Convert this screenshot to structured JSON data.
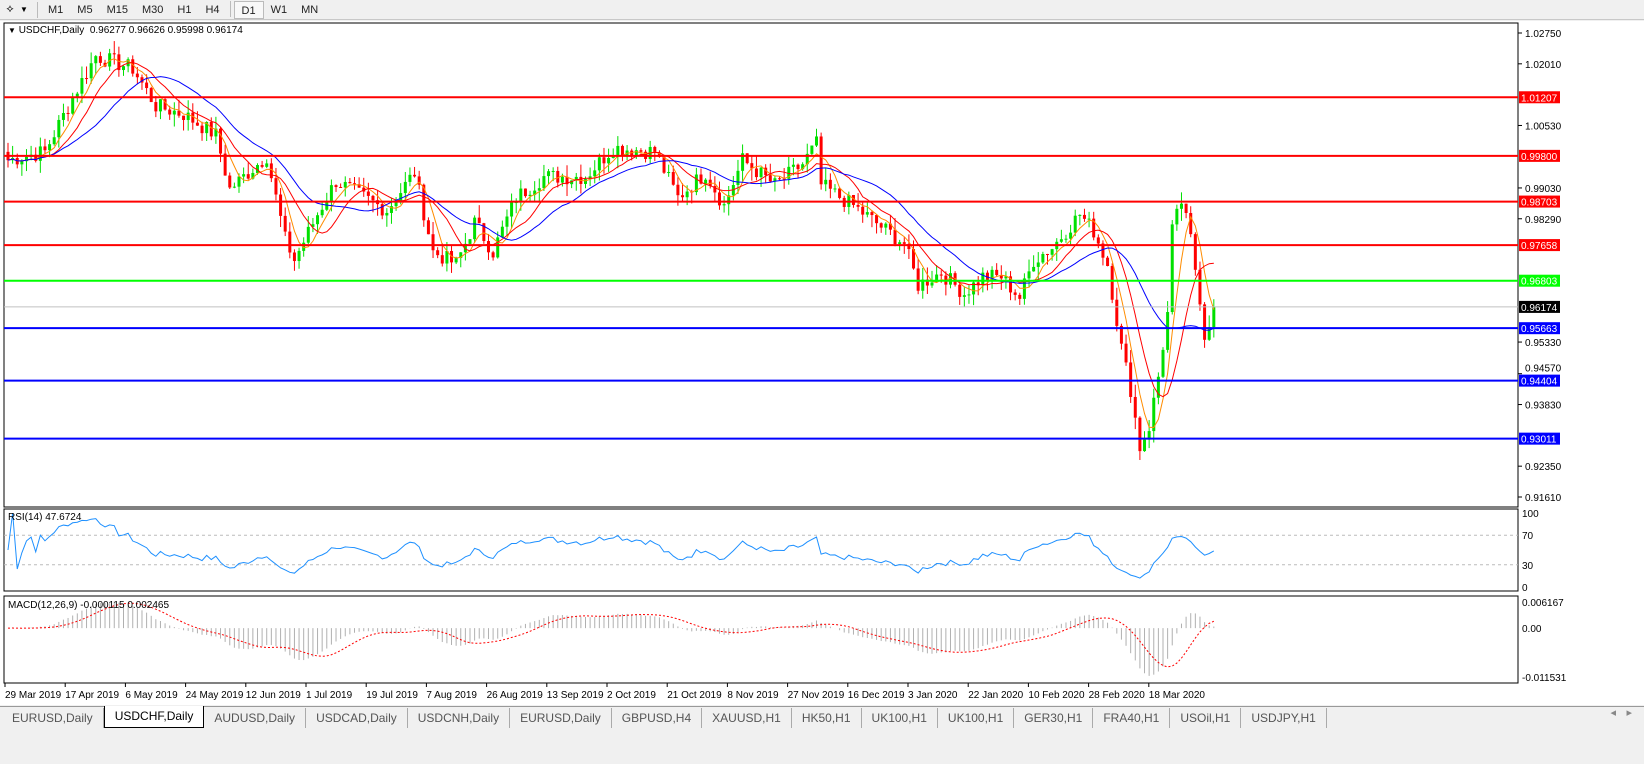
{
  "toolbar": {
    "timeframes": [
      "M1",
      "M5",
      "M15",
      "M30",
      "H1",
      "H4",
      "D1",
      "W1",
      "MN"
    ],
    "active": "D1"
  },
  "chart": {
    "symbol_label": "USDCHF,Daily",
    "ohlc": "0.96277 0.96626 0.95998 0.96174",
    "current_price": "0.96174",
    "price_ticks": [
      "1.02750",
      "1.02010",
      "1.00530",
      "0.99030",
      "0.98290",
      "0.95330",
      "0.94570",
      "0.93830",
      "0.92350",
      "0.91610"
    ],
    "price_range": [
      0.9161,
      1.0275
    ],
    "hlines": [
      {
        "price": "1.01207",
        "color": "#ff0000"
      },
      {
        "price": "0.99800",
        "color": "#ff0000"
      },
      {
        "price": "0.98703",
        "color": "#ff0000"
      },
      {
        "price": "0.97658",
        "color": "#ff0000"
      },
      {
        "price": "0.96803",
        "color": "#00ff00"
      },
      {
        "price": "0.95663",
        "color": "#0000ff"
      },
      {
        "price": "0.94404",
        "color": "#0000ff"
      },
      {
        "price": "0.93011",
        "color": "#0000ff"
      }
    ],
    "colors": {
      "bull": "#00e000",
      "bear": "#ff0000",
      "ma_fast": "#ff8c00",
      "ma_mid": "#ff0000",
      "ma_slow": "#0000ff",
      "rsi": "#1e90ff",
      "macd_signal": "#ff0000",
      "macd_hist": "#b0b0b0"
    },
    "price_path": [
      [
        0,
        0.997
      ],
      [
        8,
        0.999
      ],
      [
        14,
        1.012
      ],
      [
        19,
        1.022
      ],
      [
        27,
        1.019
      ],
      [
        32,
        1.01
      ],
      [
        38,
        1.008
      ],
      [
        45,
        1.003
      ],
      [
        48,
        0.99
      ],
      [
        56,
        0.998
      ],
      [
        60,
        0.978
      ],
      [
        62,
        0.973
      ],
      [
        67,
        0.984
      ],
      [
        71,
        0.992
      ],
      [
        77,
        0.988
      ],
      [
        82,
        0.985
      ],
      [
        88,
        0.994
      ],
      [
        92,
        0.975
      ],
      [
        97,
        0.972
      ],
      [
        101,
        0.982
      ],
      [
        105,
        0.975
      ],
      [
        110,
        0.988
      ],
      [
        116,
        0.993
      ],
      [
        125,
        0.993
      ],
      [
        131,
        1.0
      ],
      [
        140,
        0.999
      ],
      [
        145,
        0.988
      ],
      [
        151,
        0.994
      ],
      [
        155,
        0.986
      ],
      [
        159,
        0.997
      ],
      [
        166,
        0.991
      ],
      [
        172,
        0.996
      ],
      [
        175,
        1.001
      ],
      [
        176,
        0.991
      ],
      [
        183,
        0.986
      ],
      [
        189,
        0.981
      ],
      [
        194,
        0.977
      ],
      [
        197,
        0.967
      ],
      [
        202,
        0.97
      ],
      [
        207,
        0.965
      ],
      [
        211,
        0.969
      ],
      [
        215,
        0.969
      ],
      [
        219,
        0.964
      ],
      [
        222,
        0.973
      ],
      [
        226,
        0.976
      ],
      [
        232,
        0.984
      ],
      [
        235,
        0.98
      ],
      [
        238,
        0.972
      ],
      [
        241,
        0.952
      ],
      [
        243,
        0.942
      ],
      [
        245,
        0.928
      ],
      [
        247,
        0.933
      ],
      [
        249,
        0.945
      ],
      [
        251,
        0.96
      ],
      [
        252,
        0.98
      ],
      [
        254,
        0.987
      ],
      [
        256,
        0.978
      ],
      [
        258,
        0.964
      ],
      [
        259,
        0.955
      ],
      [
        261,
        0.9617
      ]
    ],
    "date_labels": [
      "29 Mar 2019",
      "17 Apr 2019",
      "6 May 2019",
      "24 May 2019",
      "12 Jun 2019",
      "1 Jul 2019",
      "19 Jul 2019",
      "7 Aug 2019",
      "26 Aug 2019",
      "13 Sep 2019",
      "2 Oct 2019",
      "21 Oct 2019",
      "8 Nov 2019",
      "27 Nov 2019",
      "16 Dec 2019",
      "3 Jan 2020",
      "22 Jan 2020",
      "10 Feb 2020",
      "28 Feb 2020",
      "18 Mar 2020"
    ]
  },
  "rsi": {
    "label": "RSI(14) 47.6724",
    "ticks": [
      "100",
      "70",
      "30",
      "0"
    ]
  },
  "macd": {
    "label": "MACD(12,26,9) -0.000115 0.002465",
    "ticks": [
      "0.006167",
      "0.00",
      "-0.011531"
    ],
    "range": [
      -0.011531,
      0.006167
    ]
  },
  "tabs": [
    "EURUSD,Daily",
    "USDCHF,Daily",
    "AUDUSD,Daily",
    "USDCAD,Daily",
    "USDCNH,Daily",
    "EURUSD,Daily",
    "GBPUSD,H4",
    "XAUUSD,H1",
    "HK50,H1",
    "UK100,H1",
    "UK100,H1",
    "GER30,H1",
    "FRA40,H1",
    "USOil,H1",
    "USDJPY,H1"
  ],
  "active_tab": 1
}
